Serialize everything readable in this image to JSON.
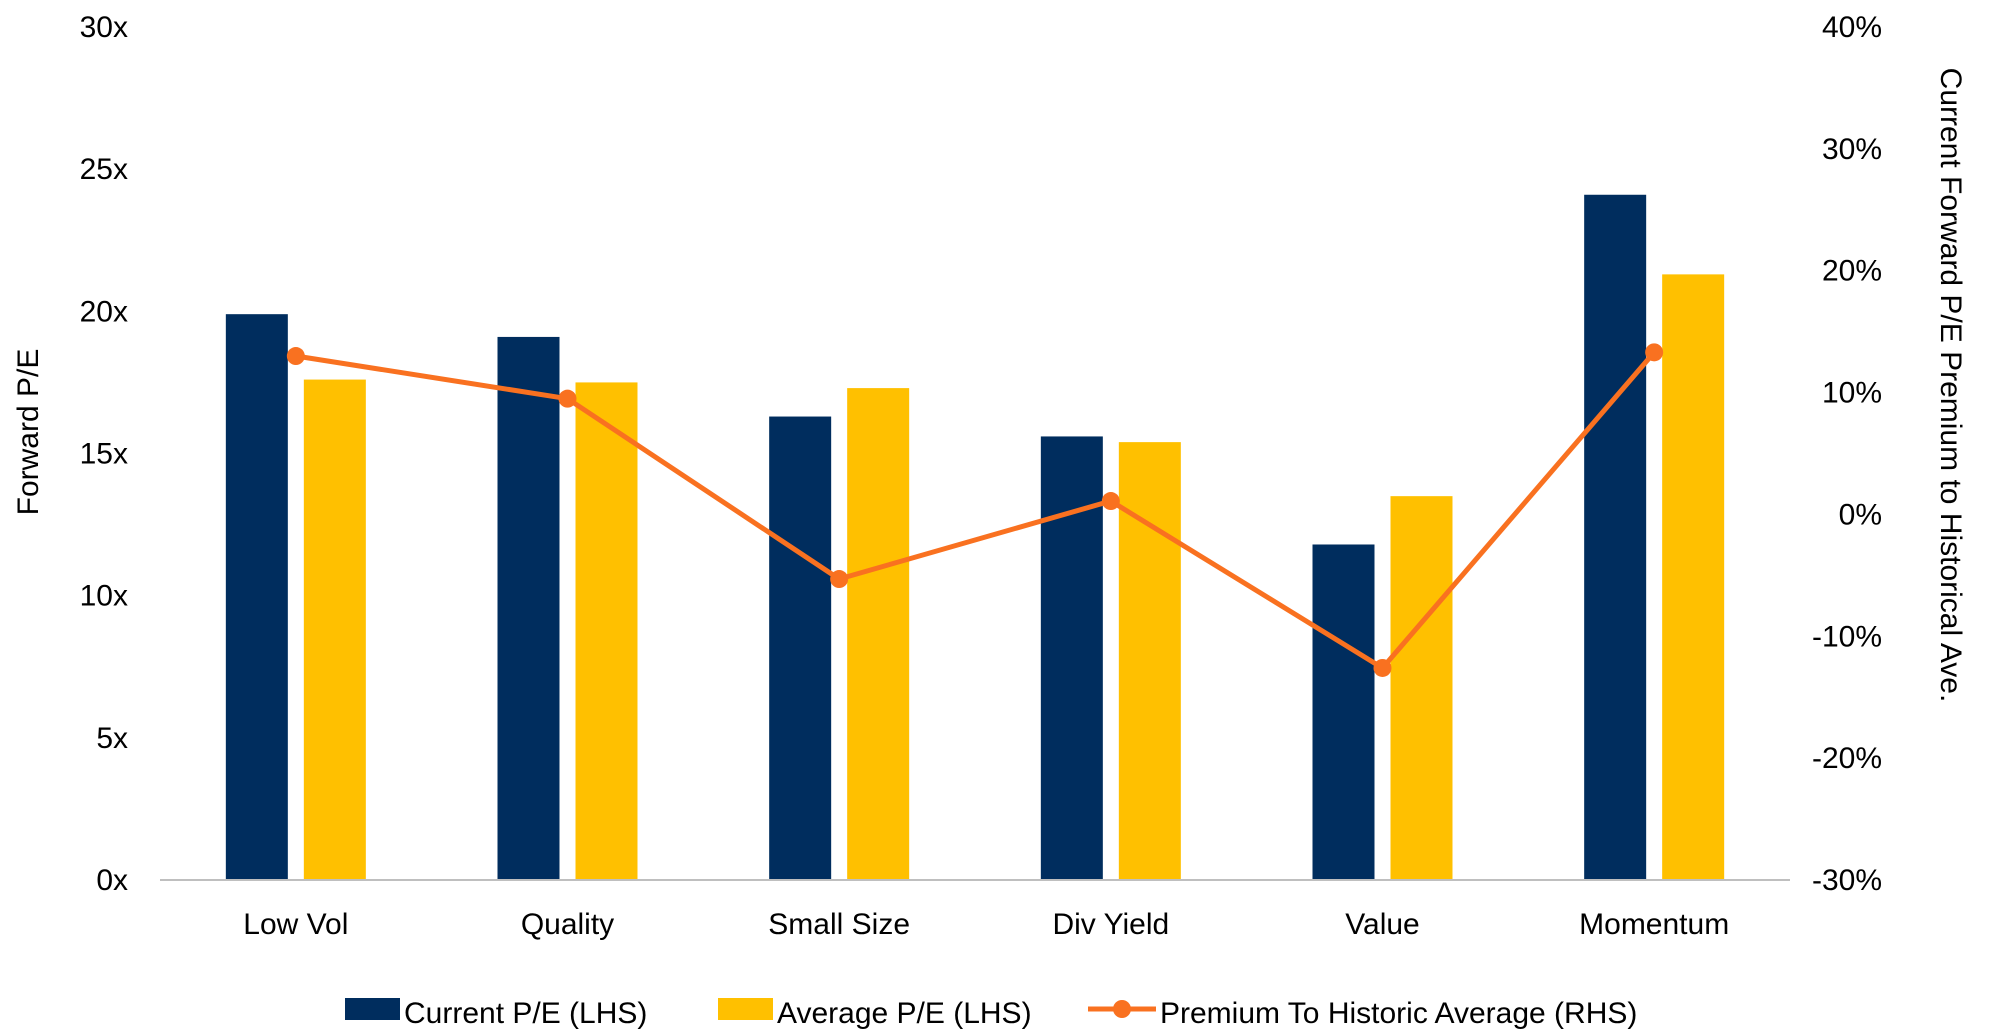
{
  "chart_data": {
    "type": "bar",
    "title": "",
    "categories": [
      "Low Vol",
      "Quality",
      "Small Size",
      "Div Yield",
      "Value",
      "Momentum"
    ],
    "series": [
      {
        "name": "Current P/E (LHS)",
        "type": "bar",
        "axis": "left",
        "values": [
          19.9,
          19.1,
          16.3,
          15.6,
          11.8,
          24.1
        ]
      },
      {
        "name": "Average P/E (LHS)",
        "type": "bar",
        "axis": "left",
        "values": [
          17.6,
          17.5,
          17.3,
          15.4,
          13.5,
          21.3
        ]
      },
      {
        "name": "Premium To Historic Average (RHS)",
        "type": "line",
        "axis": "right",
        "values": [
          13,
          9.5,
          -5.3,
          1.1,
          -12.6,
          13.3
        ]
      }
    ],
    "ylabel_left": "Forward P/E",
    "ylabel_right": "Current Forward P/E Premium to Historical Ave.",
    "ylim_left": [
      0,
      30
    ],
    "ylim_right": [
      -30,
      40
    ],
    "yticks_left": [
      "0x",
      "5x",
      "10x",
      "15x",
      "20x",
      "25x",
      "30x"
    ],
    "yticks_right": [
      "-30%",
      "-20%",
      "-10%",
      "0%",
      "10%",
      "20%",
      "30%",
      "40%"
    ],
    "legend_position": "bottom",
    "grid": false,
    "colors": {
      "current": "#002D5E",
      "average": "#FFC000",
      "premium": "#F97120"
    }
  }
}
